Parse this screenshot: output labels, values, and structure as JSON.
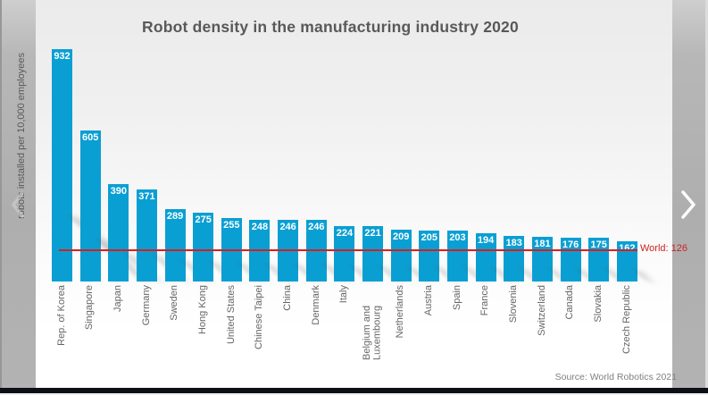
{
  "chart_data": {
    "type": "bar",
    "title": "Robot density in the manufacturing industry 2020",
    "ylabel": "robots installed per 10,000 employees",
    "categories": [
      "Rep. of Korea",
      "Singapore",
      "Japan",
      "Germany",
      "Sweden",
      "Hong Kong",
      "United States",
      "Chinese Taipei",
      "China",
      "Denmark",
      "Italy",
      "Belgium and Luxembourg",
      "Netherlands",
      "Austria",
      "Spain",
      "France",
      "Slovenia",
      "Switzerland",
      "Canada",
      "Slovakia",
      "Czech Republic"
    ],
    "values": [
      932,
      605,
      390,
      371,
      289,
      275,
      255,
      248,
      246,
      246,
      224,
      221,
      209,
      205,
      203,
      194,
      183,
      181,
      176,
      175,
      162
    ],
    "ylim": [
      0,
      932
    ],
    "grid": false,
    "value_labels_position": "inside-top",
    "legend": "none",
    "reference_line": {
      "value": 126,
      "label": "World: 126"
    },
    "source": "Source: World Robotics 2021",
    "colors": {
      "bar": "#0a9fd3",
      "value_label": "#ffffff",
      "title": "#595959",
      "axis_label": "#595959",
      "category_label": "#666666",
      "reference_line": "#d91e1e",
      "reference_label": "#cc2222",
      "source_text": "#808080"
    }
  },
  "carousel": {
    "prev_icon": "chevron-left",
    "next_icon": "chevron-right"
  }
}
